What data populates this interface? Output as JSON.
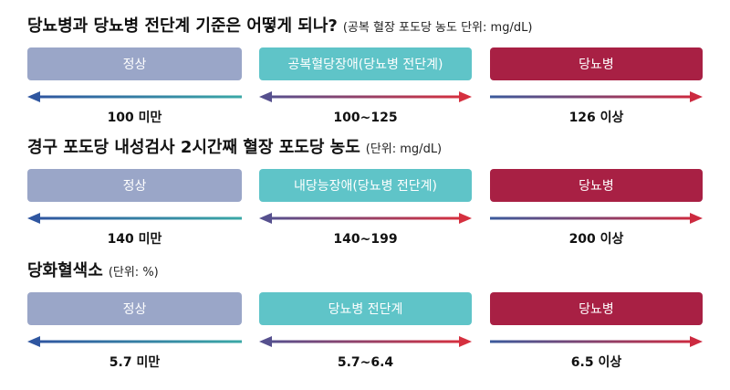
{
  "sections": [
    {
      "title": "당뇨병과 당뇨병 전단계 기준은 어떻게 되나?",
      "unit": "(공복 혈장 포도당 농도 단위: mg/dL)",
      "boxes": [
        {
          "label": "정상",
          "range": "100 미만"
        },
        {
          "label": "공복혈당장애(당뇨병 전단계)",
          "range": "100~125"
        },
        {
          "label": "당뇨병",
          "range": "126 이상"
        }
      ]
    },
    {
      "title": "경구 포도당 내성검사 2시간째 혈장 포도당 농도",
      "unit": "(단위: mg/dL)",
      "boxes": [
        {
          "label": "정상",
          "range": "140 미만"
        },
        {
          "label": "내당능장애(당뇨병 전단계)",
          "range": "140~199"
        },
        {
          "label": "당뇨병",
          "range": "200 이상"
        }
      ]
    },
    {
      "title": "당화혈색소",
      "unit": "(단위: %)",
      "boxes": [
        {
          "label": "정상",
          "range": "5.7 미만"
        },
        {
          "label": "당뇨병 전단계",
          "range": "5.7~6.4"
        },
        {
          "label": "당뇨병",
          "range": "6.5 이상"
        }
      ]
    }
  ]
}
